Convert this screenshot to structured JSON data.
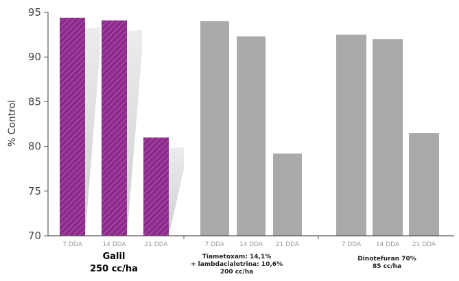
{
  "chart_data": {
    "type": "bar",
    "title": "",
    "ylabel": "% Control",
    "ylim": [
      70,
      95
    ],
    "yticks": [
      "70",
      "75",
      "80",
      "85",
      "90",
      "95"
    ],
    "grid": false,
    "legend": "none",
    "colors": {
      "featured": "#8e2a8e",
      "featured_hatch": "#c27cc2",
      "comparison": "#aaaaaa",
      "axis": "#555555",
      "shadow": "#d6d6d6"
    },
    "groups": [
      {
        "label_lines": [
          "Galil",
          "250 cc/ha"
        ],
        "featured": true,
        "bars": [
          {
            "label": "7 DDA",
            "value": 94.4
          },
          {
            "label": "14 DDA",
            "value": 94.1
          },
          {
            "label": "21 DDA",
            "value": 81.0
          }
        ]
      },
      {
        "label_lines": [
          "Tiametoxam: 14,1%",
          "+ lambdacialotrina: 10,6%",
          "200 cc/ha"
        ],
        "featured": false,
        "bars": [
          {
            "label": "7 DDA",
            "value": 94.0
          },
          {
            "label": "14 DDA",
            "value": 92.3
          },
          {
            "label": "21 DDA",
            "value": 79.2
          }
        ]
      },
      {
        "label_lines": [
          "Dinotefuran 70%",
          "85 cc/ha"
        ],
        "featured": false,
        "bars": [
          {
            "label": "7 DDA",
            "value": 92.5
          },
          {
            "label": "14 DDA",
            "value": 92.0
          },
          {
            "label": "21 DDA",
            "value": 81.5
          }
        ]
      }
    ]
  }
}
